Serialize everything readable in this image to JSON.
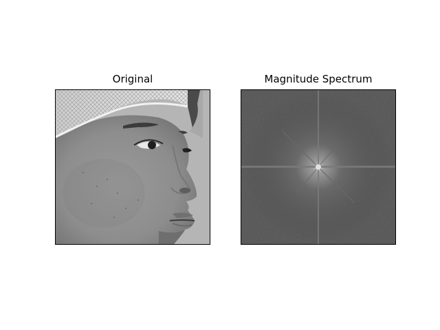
{
  "panels": {
    "left": {
      "title": "Original",
      "content": "grayscale face photo (profile, hair net)"
    },
    "right": {
      "title": "Magnitude Spectrum",
      "content": "log magnitude of 2D FFT, centered"
    }
  },
  "colors": {
    "background": "#ffffff",
    "frame": "#000000",
    "photo_bg": "#b3b3b3",
    "spectrum_bg": "#4a4a4a"
  }
}
